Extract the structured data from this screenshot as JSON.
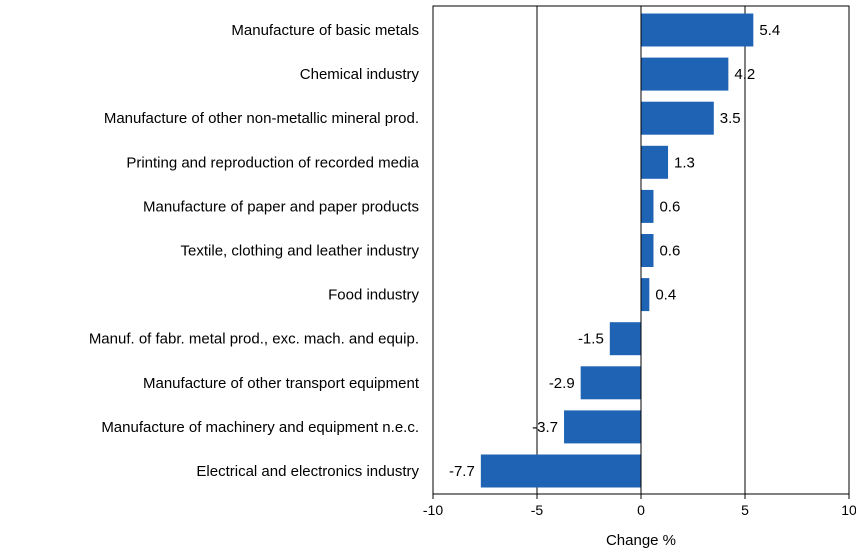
{
  "chart_data": {
    "type": "bar",
    "orientation": "horizontal",
    "categories": [
      "Manufacture of basic metals",
      "Chemical industry",
      "Manufacture of other non-metallic mineral prod.",
      "Printing and reproduction of recorded media",
      "Manufacture of paper and paper products",
      "Textile, clothing and leather industry",
      "Food industry",
      "Manuf. of fabr. metal prod., exc. mach. and equip.",
      "Manufacture of other transport equipment",
      "Manufacture of machinery and equipment n.e.c.",
      "Electrical and electronics industry"
    ],
    "values": [
      5.4,
      4.2,
      3.5,
      1.3,
      0.6,
      0.6,
      0.4,
      -1.5,
      -2.9,
      -3.7,
      -7.7
    ],
    "value_labels": [
      "5.4",
      "4.2",
      "3.5",
      "1.3",
      "0.6",
      "0.6",
      "0.4",
      "-1.5",
      "-2.9",
      "-3.7",
      "-7.7"
    ],
    "xlabel": "Change %",
    "xlim": [
      -10,
      10
    ],
    "xticks": [
      -10,
      -5,
      0,
      5,
      10
    ],
    "xtick_labels": [
      "-10",
      "-5",
      "0",
      "5",
      "10"
    ],
    "bar_color": "#1f63b5",
    "grid": "vertical lines at major ticks",
    "legend": "none"
  }
}
